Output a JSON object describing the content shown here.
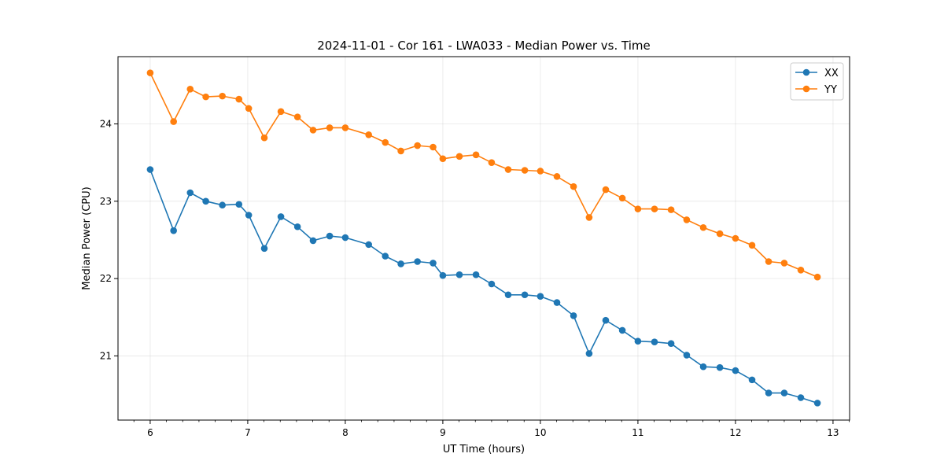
{
  "chart_data": {
    "type": "line",
    "title": "2024-11-01 - Cor 161 - LWA033 - Median Power vs. Time",
    "xlabel": "UT Time (hours)",
    "ylabel": "Median Power (CPU)",
    "xlim": [
      5.67,
      13.17
    ],
    "ylim": [
      20.17,
      24.87
    ],
    "xticks": [
      6,
      7,
      8,
      9,
      10,
      11,
      12,
      13
    ],
    "yticks": [
      21,
      22,
      23,
      24
    ],
    "grid": true,
    "legend_position": "top-right",
    "x": [
      6.0,
      6.24,
      6.41,
      6.57,
      6.74,
      6.91,
      7.01,
      7.17,
      7.34,
      7.51,
      7.67,
      7.84,
      8.0,
      8.24,
      8.41,
      8.57,
      8.74,
      8.9,
      9.0,
      9.17,
      9.34,
      9.5,
      9.67,
      9.84,
      10.0,
      10.17,
      10.34,
      10.5,
      10.67,
      10.84,
      11.0,
      11.17,
      11.34,
      11.5,
      11.67,
      11.84,
      12.0,
      12.17,
      12.34,
      12.5,
      12.67,
      12.84
    ],
    "series": [
      {
        "name": "XX",
        "color": "#1f77b4",
        "values": [
          23.41,
          22.62,
          23.11,
          23.0,
          22.95,
          22.96,
          22.82,
          22.39,
          22.8,
          22.67,
          22.49,
          22.55,
          22.53,
          22.44,
          22.29,
          22.19,
          22.22,
          22.2,
          22.04,
          22.05,
          22.05,
          21.93,
          21.79,
          21.79,
          21.77,
          21.69,
          21.52,
          21.03,
          21.46,
          21.33,
          21.19,
          21.18,
          21.16,
          21.01,
          20.86,
          20.85,
          20.81,
          20.69,
          20.52,
          20.52,
          20.46,
          20.39
        ]
      },
      {
        "name": "YY",
        "color": "#ff7f0e",
        "values": [
          24.66,
          24.03,
          24.45,
          24.35,
          24.36,
          24.32,
          24.2,
          23.82,
          24.16,
          24.09,
          23.92,
          23.95,
          23.95,
          23.86,
          23.76,
          23.65,
          23.72,
          23.7,
          23.55,
          23.58,
          23.6,
          23.5,
          23.41,
          23.4,
          23.39,
          23.32,
          23.19,
          22.79,
          23.15,
          23.04,
          22.9,
          22.9,
          22.89,
          22.76,
          22.66,
          22.58,
          22.52,
          22.43,
          22.22,
          22.2,
          22.11,
          22.02
        ]
      }
    ]
  }
}
